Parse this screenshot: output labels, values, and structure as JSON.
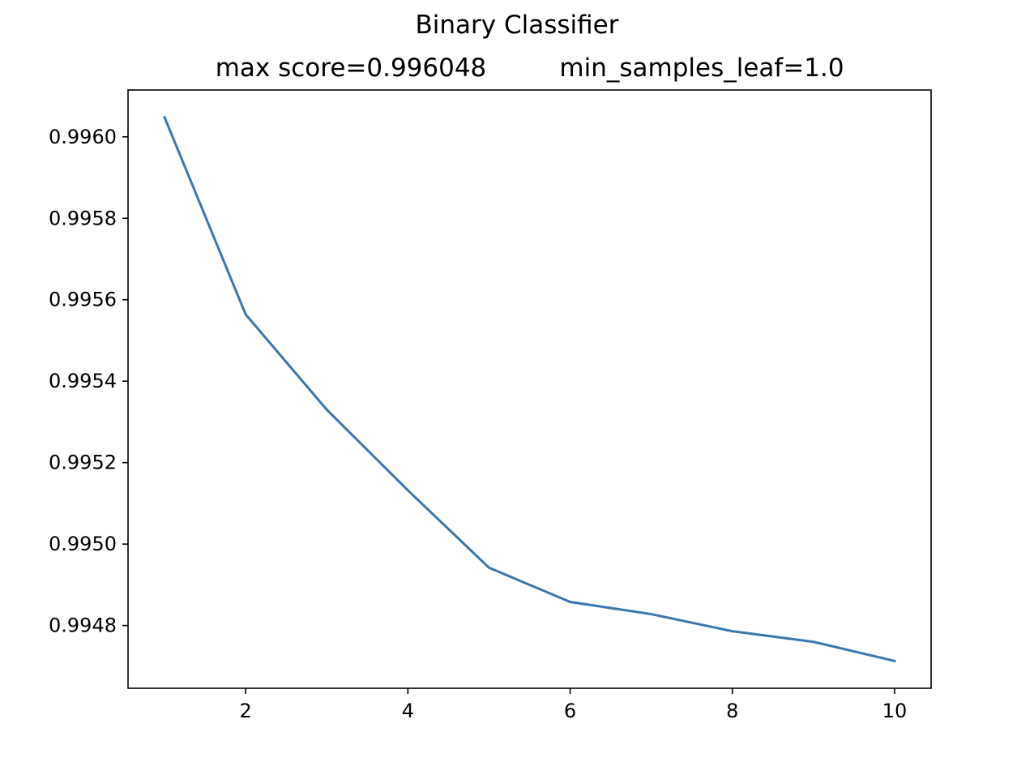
{
  "chart_data": {
    "type": "line",
    "suptitle": "Binary Classifier",
    "title_left": "max score=0.996048",
    "title_right": "min_samples_leaf=1.0",
    "xlabel": "",
    "ylabel": "",
    "x": [
      1,
      2,
      3,
      4,
      5,
      6,
      7,
      8,
      9,
      10
    ],
    "series": [
      {
        "values": [
          0.996048,
          0.995564,
          0.99533,
          0.995132,
          0.994942,
          0.994858,
          0.994828,
          0.994786,
          0.99476,
          0.994713
        ],
        "color": "#3a76af"
      }
    ],
    "xlim": [
      0.55,
      10.45
    ],
    "ylim": [
      0.994646,
      0.996115
    ],
    "xticks": [
      2,
      4,
      6,
      8,
      10
    ],
    "xtick_labels": [
      "2",
      "4",
      "6",
      "8",
      "10"
    ],
    "yticks": [
      0.9948,
      0.995,
      0.9952,
      0.9954,
      0.9956,
      0.9958,
      0.996
    ],
    "ytick_labels": [
      "0.9948",
      "0.9950",
      "0.9952",
      "0.9954",
      "0.9956",
      "0.9958",
      "0.9960"
    ],
    "grid": false,
    "legend": "none"
  }
}
